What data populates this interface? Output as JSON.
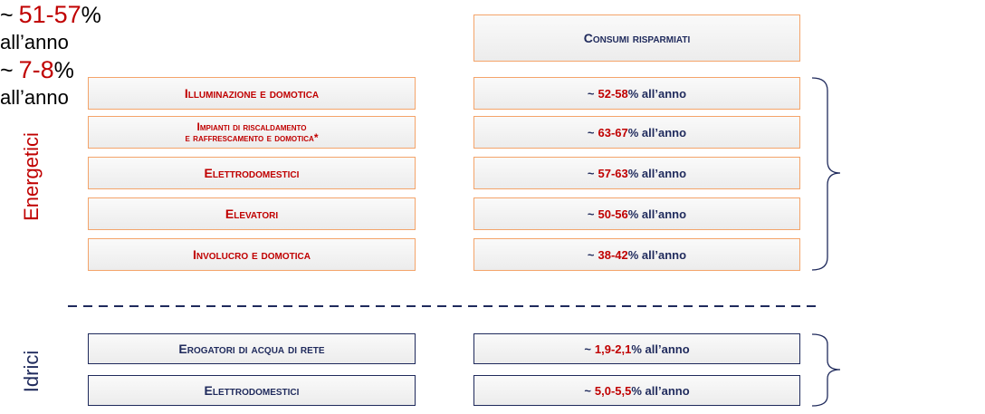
{
  "header": "Consumi risparmiati",
  "groups": [
    {
      "label": "Energetici",
      "items": [
        {
          "name": [
            "Illuminazione e domotica"
          ],
          "saving": {
            "prefix": "~",
            "range": "52-58",
            "suffix": "% all’anno"
          }
        },
        {
          "name": [
            "Impianti di riscaldamento",
            "e raffrescamento e domotica*"
          ],
          "saving": {
            "prefix": "~",
            "range": "63-67",
            "suffix": "% all’anno"
          }
        },
        {
          "name": [
            "Elettrodomestici"
          ],
          "saving": {
            "prefix": "~",
            "range": "57-63",
            "suffix": "% all’anno"
          }
        },
        {
          "name": [
            "Elevatori"
          ],
          "saving": {
            "prefix": "~",
            "range": "50-56",
            "suffix": "% all’anno"
          }
        },
        {
          "name": [
            "Involucro e domotica"
          ],
          "saving": {
            "prefix": "~",
            "range": "38-42",
            "suffix": "% all’anno"
          }
        }
      ],
      "total": {
        "prefix": "~",
        "range": "51-57",
        "unit": "%",
        "suffix": "all’anno"
      }
    },
    {
      "label": "Idrici",
      "items": [
        {
          "name": [
            "Erogatori di acqua di rete"
          ],
          "saving": {
            "prefix": "~",
            "range": "1,9-2,1",
            "suffix": "% all’anno"
          }
        },
        {
          "name": [
            "Elettrodomestici"
          ],
          "saving": {
            "prefix": "~",
            "range": "5,0-5,5",
            "suffix": "% all’anno"
          }
        }
      ],
      "total": {
        "prefix": "~",
        "range": "7-8",
        "unit": "%",
        "suffix": "all’anno"
      }
    }
  ]
}
